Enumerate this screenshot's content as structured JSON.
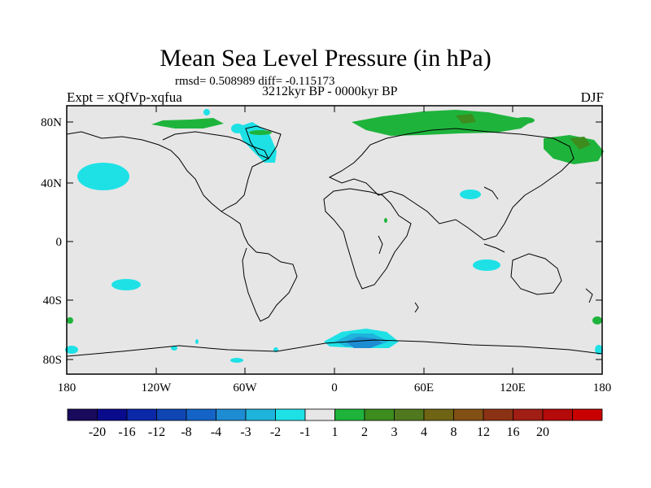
{
  "header": {
    "title": "Mean Sea Level Pressure (in hPa)",
    "stats": "rmsd= 0.508989 diff= -0.115173",
    "experiment": "Expt = xQfVp-xqfua",
    "period": "3212kyr BP - 0000kyr BP",
    "season": "DJF"
  },
  "map": {
    "background_color": "#e6e6e6",
    "coast_color": "#000000",
    "lat_ticks": [
      "80N",
      "40N",
      "0",
      "40S",
      "80S"
    ],
    "lon_ticks": [
      "180",
      "120W",
      "60W",
      "0",
      "60E",
      "120E",
      "180"
    ]
  },
  "colorbar": {
    "colors": [
      "#1a0a5c",
      "#0a0a8c",
      "#0a28a8",
      "#0f46b4",
      "#1464c8",
      "#1e8cd2",
      "#1eb4dc",
      "#1ee1e6",
      "#e6e6e6",
      "#1eb43c",
      "#3c8c1e",
      "#50781e",
      "#6e6414",
      "#825014",
      "#8c3214",
      "#a01e14",
      "#b40a0a",
      "#c80000"
    ],
    "labels": [
      "-20",
      "-16",
      "-12",
      "-8",
      "-4",
      "-3",
      "-2",
      "-1",
      "1",
      "2",
      "3",
      "4",
      "8",
      "12",
      "16",
      "20"
    ]
  },
  "anomaly_colors": {
    "weak_negative": "#1ee1e6",
    "moderate_negative": "#1eb4dc",
    "strong_negative": "#1e8cd2",
    "weak_positive": "#1eb43c",
    "moderate_positive": "#3c8c1e"
  }
}
